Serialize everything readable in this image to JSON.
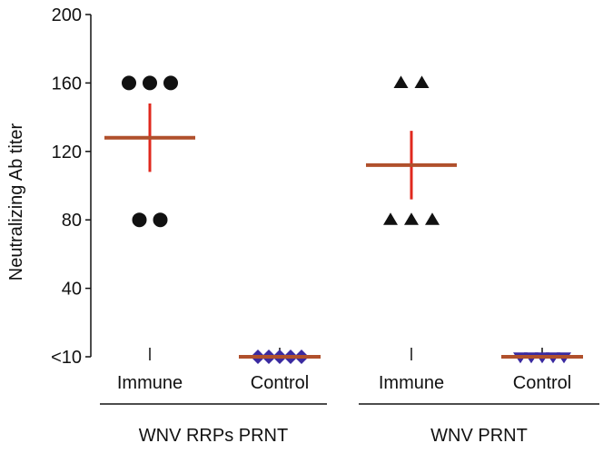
{
  "chart_data": {
    "type": "scatter",
    "ylabel": "Neutralizing Ab titer",
    "xlabel": "",
    "ylim": [
      0,
      200
    ],
    "y_ticks": [
      {
        "value": 0,
        "label": "<10"
      },
      {
        "value": 40,
        "label": "40"
      },
      {
        "value": 80,
        "label": "80"
      },
      {
        "value": 120,
        "label": "120"
      },
      {
        "value": 160,
        "label": "160"
      },
      {
        "value": 200,
        "label": "200"
      }
    ],
    "groups": [
      {
        "label": "WNV RRPs PRNT",
        "categories": [
          "Immune",
          "Control"
        ]
      },
      {
        "label": "WNV PRNT",
        "categories": [
          "Immune",
          "Control"
        ]
      }
    ],
    "series": [
      {
        "category": "Immune",
        "group": "WNV RRPs PRNT",
        "marker": "circle",
        "color": "#111111",
        "values": [
          160,
          160,
          160,
          80,
          80
        ],
        "mean": 128,
        "sd": 20
      },
      {
        "category": "Control",
        "group": "WNV RRPs PRNT",
        "marker": "diamond",
        "color": "#3a2aa0",
        "values": [
          0,
          0,
          0,
          0,
          0
        ],
        "mean": 0,
        "sd": 0
      },
      {
        "category": "Immune",
        "group": "WNV PRNT",
        "marker": "triangle-up",
        "color": "#111111",
        "values": [
          160,
          160,
          80,
          80,
          80
        ],
        "mean": 112,
        "sd": 20
      },
      {
        "category": "Control",
        "group": "WNV PRNT",
        "marker": "triangle-down",
        "color": "#3a2aa0",
        "values": [
          0,
          0,
          0,
          0,
          0
        ],
        "mean": 0,
        "sd": 0
      }
    ],
    "mean_line_color": "#b0502c",
    "error_bar_color": "#e0281e",
    "grid": false
  }
}
